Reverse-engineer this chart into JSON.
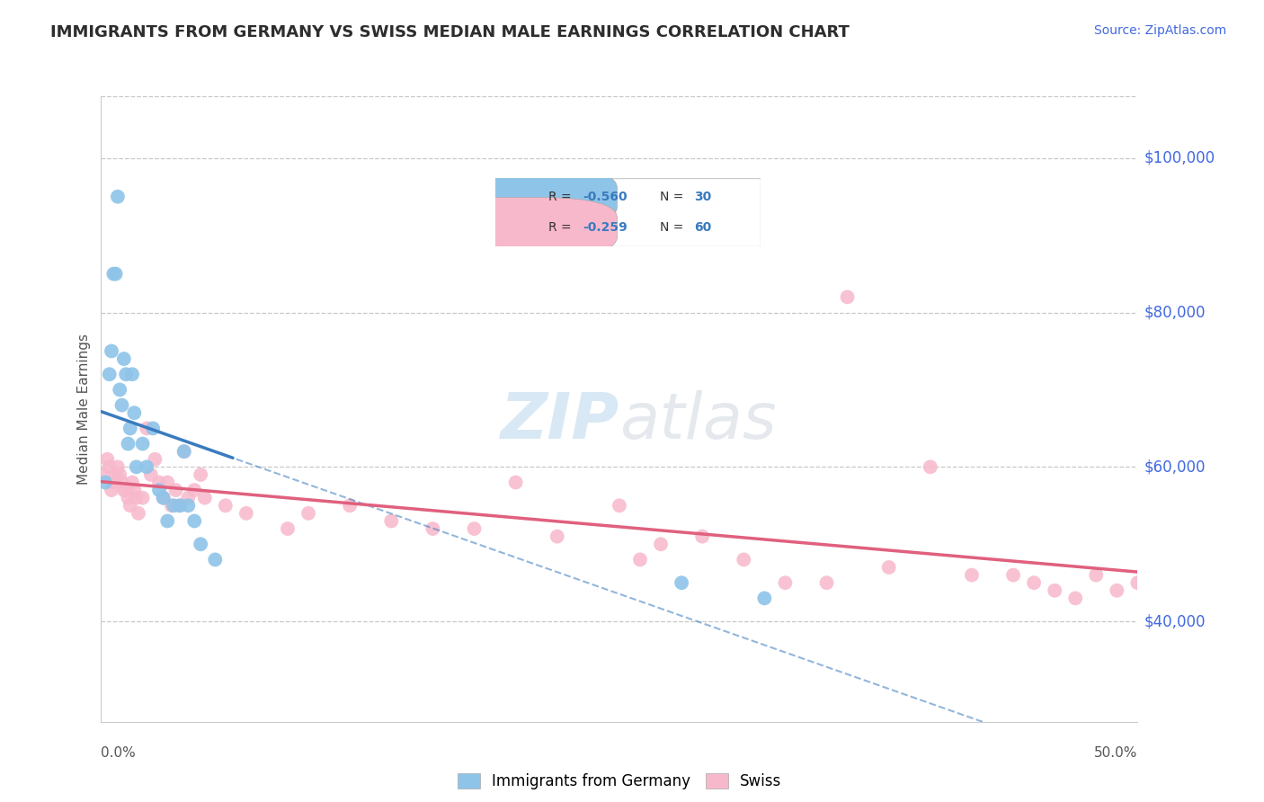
{
  "title": "IMMIGRANTS FROM GERMANY VS SWISS MEDIAN MALE EARNINGS CORRELATION CHART",
  "source": "Source: ZipAtlas.com",
  "ylabel": "Median Male Earnings",
  "y_tick_values": [
    40000,
    60000,
    80000,
    100000
  ],
  "ylim": [
    27000,
    108000
  ],
  "xlim": [
    0.0,
    0.5
  ],
  "legend_label1": "Immigrants from Germany",
  "legend_label2": "Swiss",
  "legend_r1": "-0.560",
  "legend_n1": "30",
  "legend_r2": "-0.259",
  "legend_n2": "60",
  "color_blue": "#8ec4e8",
  "color_pink": "#f7b8cb",
  "color_blue_line": "#3a7bbf",
  "color_pink_line": "#e0607e",
  "color_blue_text": "#3a7bbf",
  "color_title": "#2d2d2d",
  "color_source": "#4169e1",
  "color_ytick": "#4169e1",
  "watermark_color": "#c8dff0",
  "germany_x": [
    0.002,
    0.004,
    0.005,
    0.006,
    0.007,
    0.008,
    0.009,
    0.01,
    0.011,
    0.012,
    0.013,
    0.014,
    0.015,
    0.016,
    0.017,
    0.02,
    0.022,
    0.025,
    0.028,
    0.03,
    0.032,
    0.035,
    0.038,
    0.04,
    0.042,
    0.045,
    0.048,
    0.055,
    0.28,
    0.32
  ],
  "germany_y": [
    58000,
    72000,
    75000,
    85000,
    85000,
    95000,
    70000,
    68000,
    74000,
    72000,
    63000,
    65000,
    72000,
    67000,
    60000,
    63000,
    60000,
    65000,
    57000,
    56000,
    53000,
    55000,
    55000,
    62000,
    55000,
    53000,
    50000,
    48000,
    45000,
    43000
  ],
  "swiss_x": [
    0.001,
    0.003,
    0.004,
    0.005,
    0.006,
    0.007,
    0.008,
    0.009,
    0.01,
    0.011,
    0.012,
    0.013,
    0.014,
    0.015,
    0.016,
    0.017,
    0.018,
    0.02,
    0.022,
    0.024,
    0.026,
    0.028,
    0.03,
    0.032,
    0.034,
    0.036,
    0.038,
    0.04,
    0.042,
    0.045,
    0.048,
    0.05,
    0.06,
    0.07,
    0.09,
    0.1,
    0.12,
    0.14,
    0.16,
    0.18,
    0.2,
    0.22,
    0.25,
    0.27,
    0.29,
    0.31,
    0.33,
    0.36,
    0.38,
    0.4,
    0.42,
    0.44,
    0.46,
    0.47,
    0.48,
    0.49,
    0.5,
    0.26,
    0.35,
    0.45
  ],
  "swiss_y": [
    59000,
    61000,
    60000,
    57000,
    58000,
    59000,
    60000,
    59000,
    58000,
    57000,
    57000,
    56000,
    55000,
    58000,
    57000,
    56000,
    54000,
    56000,
    65000,
    59000,
    61000,
    58000,
    56000,
    58000,
    55000,
    57000,
    55000,
    62000,
    56000,
    57000,
    59000,
    56000,
    55000,
    54000,
    52000,
    54000,
    55000,
    53000,
    52000,
    52000,
    58000,
    51000,
    55000,
    50000,
    51000,
    48000,
    45000,
    82000,
    47000,
    60000,
    46000,
    46000,
    44000,
    43000,
    46000,
    44000,
    45000,
    48000,
    45000,
    45000
  ]
}
